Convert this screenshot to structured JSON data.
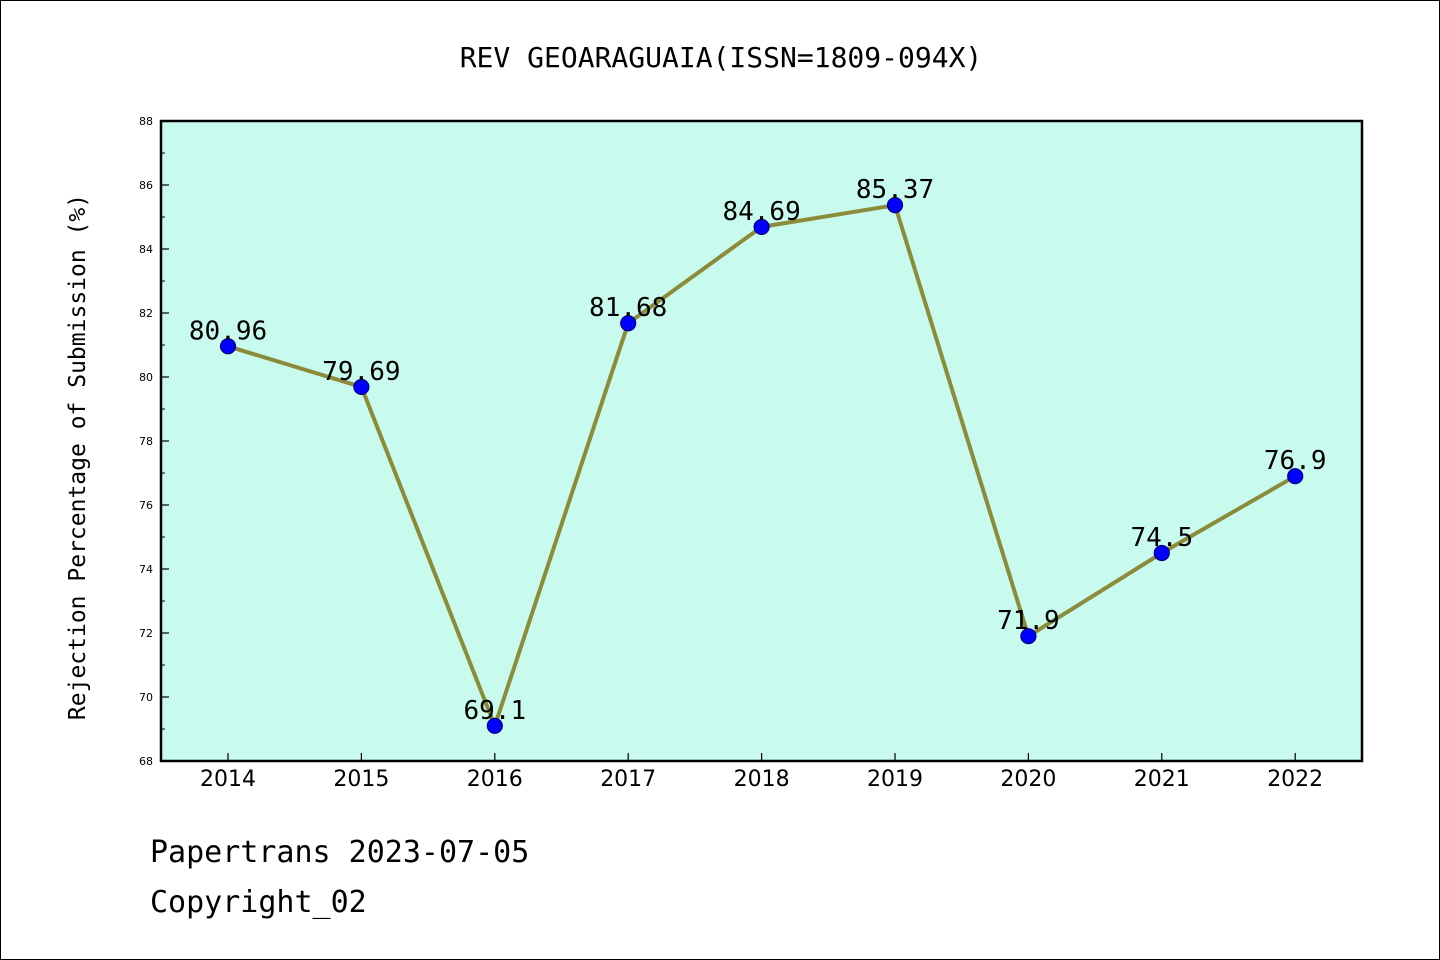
{
  "footer": {
    "line1": "Papertrans 2023-07-05",
    "line2": "Copyright_02"
  },
  "colors": {
    "plot_background": "#c8fbee",
    "line": "#8b8b3a",
    "marker": "#0000ff",
    "marker_edge": "#000080"
  },
  "chart_data": {
    "type": "line",
    "title": "REV GEOARAGUAIA(ISSN=1809-094X)",
    "xlabel": "",
    "ylabel": "Rejection Percentage of Submission (%)",
    "categories": [
      "2014",
      "2015",
      "2016",
      "2017",
      "2018",
      "2019",
      "2020",
      "2021",
      "2022"
    ],
    "series": [
      {
        "values": [
          80.96,
          79.69,
          69.1,
          81.68,
          84.69,
          85.37,
          71.9,
          74.5,
          76.9
        ],
        "labels": [
          "80.96",
          "79.69",
          "69.1",
          "81.68",
          "84.69",
          "85.37",
          "71.9",
          "74.5",
          "76.9"
        ]
      }
    ],
    "ylim": [
      68,
      88
    ],
    "yticks": [
      "68",
      "70",
      "72",
      "74",
      "76",
      "78",
      "80",
      "82",
      "84",
      "86",
      "88"
    ],
    "grid": false,
    "legend": "none"
  }
}
